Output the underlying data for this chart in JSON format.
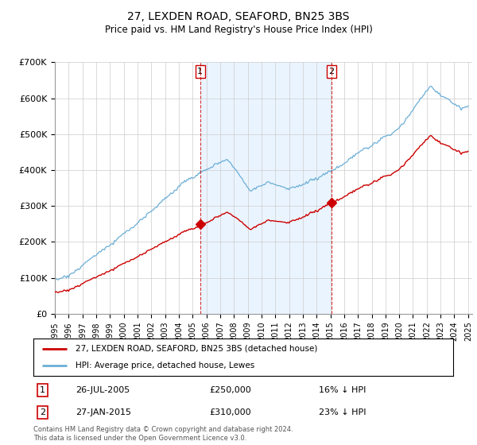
{
  "title": "27, LEXDEN ROAD, SEAFORD, BN25 3BS",
  "subtitle": "Price paid vs. HM Land Registry's House Price Index (HPI)",
  "legend_entry1": "27, LEXDEN ROAD, SEAFORD, BN25 3BS (detached house)",
  "legend_entry2": "HPI: Average price, detached house, Lewes",
  "sale1_date": "26-JUL-2005",
  "sale1_price": "£250,000",
  "sale1_info": "16% ↓ HPI",
  "sale1_year": 2005.55,
  "sale1_value": 250000,
  "sale2_date": "27-JAN-2015",
  "sale2_price": "£310,000",
  "sale2_info": "23% ↓ HPI",
  "sale2_year": 2015.08,
  "sale2_value": 310000,
  "footer": "Contains HM Land Registry data © Crown copyright and database right 2024.\nThis data is licensed under the Open Government Licence v3.0.",
  "hpi_color": "#6baed6",
  "price_color": "#cc0000",
  "vline_color": "#cc0000",
  "shade_color": "#ddeeff",
  "ylim": [
    0,
    700000
  ],
  "yticks": [
    0,
    100000,
    200000,
    300000,
    400000,
    500000,
    600000,
    700000
  ],
  "ytick_labels": [
    "£0",
    "£100K",
    "£200K",
    "£300K",
    "£400K",
    "£500K",
    "£600K",
    "£700K"
  ],
  "xlim_start": 1995,
  "xlim_end": 2025.3
}
